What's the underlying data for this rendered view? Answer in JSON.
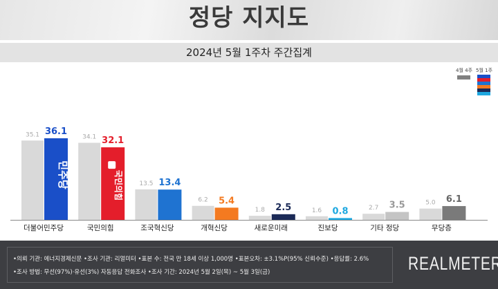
{
  "title": "정당 지지도",
  "subtitle": "2024년 5월 1주차 주간집계",
  "chart_data": {
    "type": "bar",
    "categories": [
      "더불어민주당",
      "국민의힘",
      "조국혁신당",
      "개혁신당",
      "새로운미래",
      "진보당",
      "기타 정당",
      "무당층"
    ],
    "series": [
      {
        "name": "4월 4주",
        "values": [
          35.1,
          34.1,
          13.5,
          6.2,
          1.8,
          1.6,
          2.7,
          5.0
        ],
        "color": "#d9d9d9"
      },
      {
        "name": "5월 1주",
        "values": [
          36.1,
          32.1,
          13.4,
          5.4,
          2.5,
          0.8,
          3.5,
          6.1
        ],
        "colors": [
          "#1a4fc8",
          "#e41e2b",
          "#1f73d1",
          "#f47a20",
          "#1b2a57",
          "#1ea8e0",
          "#c4c4c4",
          "#7a7a7a"
        ]
      }
    ],
    "label_colors": [
      "#1a4fc8",
      "#e41e2b",
      "#1f73d1",
      "#f47a20",
      "#1b2a57",
      "#1ea8e0",
      "#999999",
      "#666666"
    ],
    "ylim": [
      0,
      40
    ],
    "grid": false,
    "legend": "top-right",
    "logos": {
      "dp": "민주당",
      "ppp": "국민의힘"
    }
  },
  "legend": {
    "prev": "4월 4주",
    "curr": "5월 1주",
    "stack_colors": [
      "#1a4fc8",
      "#e41e2b",
      "#1f73d1",
      "#f47a20",
      "#1b2a57",
      "#1ea8e0"
    ]
  },
  "footer": {
    "line1": "•의뢰 기관: 에너지경제신문  •조사 기관: 리얼미터 •표본 수: 전국 만 18세 이상 1,000명 •표본오차: ±3.1%P(95% 신뢰수준) •응답률: 2.6%",
    "line2": "•조사 방법: 무선(97%)·유선(3%) 자동응답 전화조사 •조사 기간: 2024년 5월 2일(목) ~ 5월 3일(금)",
    "brand": "REALMETER"
  }
}
